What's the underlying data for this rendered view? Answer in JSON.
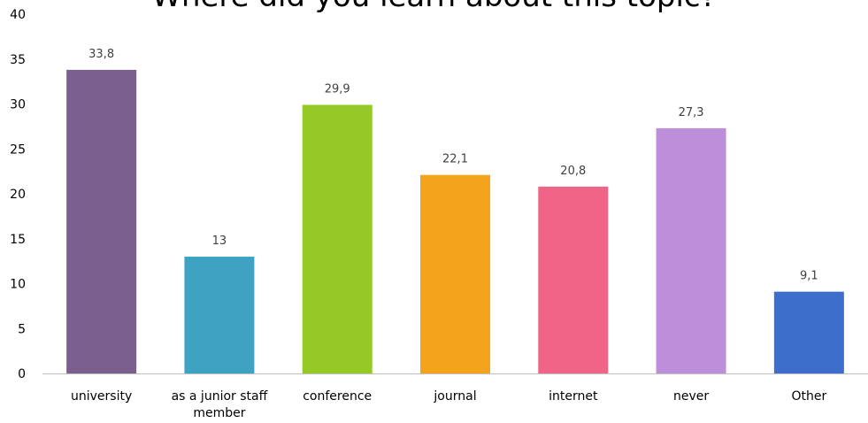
{
  "chart_data": {
    "type": "bar",
    "title": "Where did you learn about this topic?",
    "xlabel": "",
    "ylabel": "",
    "categories": [
      "university",
      "as a junior staff member",
      "conference",
      "journal",
      "internet",
      "never",
      "Other"
    ],
    "category_label_lines": [
      [
        "university"
      ],
      [
        "as a junior staff",
        "member"
      ],
      [
        "conference"
      ],
      [
        "journal"
      ],
      [
        "internet"
      ],
      [
        "never"
      ],
      [
        "Other"
      ]
    ],
    "values": [
      33.8,
      13,
      29.9,
      22.1,
      20.8,
      27.3,
      9.1
    ],
    "data_labels": [
      "33,8",
      "13",
      "29,9",
      "22,1",
      "20,8",
      "27,3",
      "9,1"
    ],
    "bar_colors": [
      "#7b5f8e",
      "#3ea3c3",
      "#94c926",
      "#f4a41c",
      "#ef6487",
      "#bd8fdb",
      "#3d6ecb"
    ],
    "ylim": [
      0,
      40
    ],
    "yticks": [
      0,
      5,
      10,
      15,
      20,
      25,
      30,
      35,
      40
    ],
    "grid": false,
    "legend": "none"
  }
}
